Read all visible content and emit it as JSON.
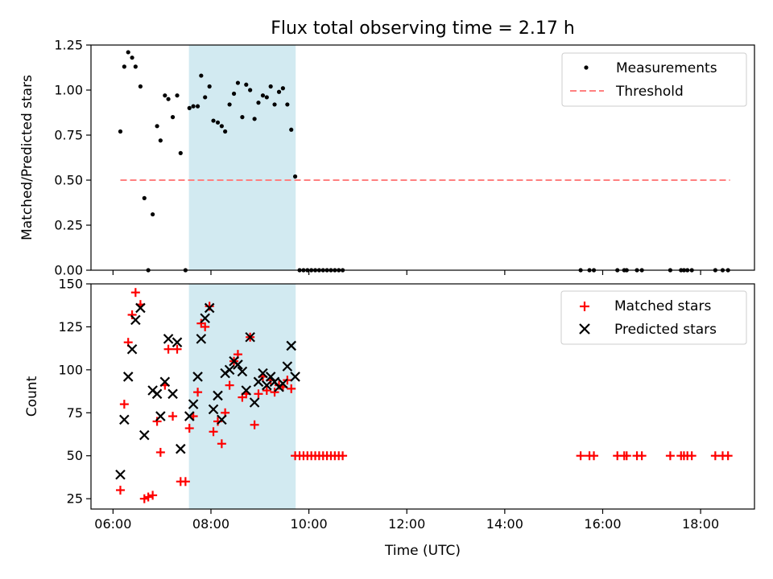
{
  "chart_data": [
    {
      "type": "scatter",
      "title": "Flux total observing time = 2.17 h",
      "ylabel": "Matched/Predicted stars",
      "ylim": [
        0,
        1.25
      ],
      "yticks": [
        "0.00",
        "0.25",
        "0.50",
        "0.75",
        "1.00",
        "1.25"
      ],
      "xlim_hours": [
        5.55,
        19.1
      ],
      "highlight_span": [
        7.55,
        9.73
      ],
      "highlight_color": "#add8e6",
      "legend": {
        "location": "top-right",
        "measurements": "Measurements",
        "threshold": "Threshold"
      },
      "threshold": {
        "value": 0.5,
        "x": [
          6.15,
          18.6
        ],
        "color": "#ff8080"
      },
      "series": [
        {
          "name": "Measurements",
          "color": "#000000",
          "points": [
            [
              6.15,
              0.77
            ],
            [
              6.23,
              1.13
            ],
            [
              6.31,
              1.21
            ],
            [
              6.39,
              1.18
            ],
            [
              6.46,
              1.13
            ],
            [
              6.56,
              1.02
            ],
            [
              6.64,
              0.4
            ],
            [
              6.72,
              0.0
            ],
            [
              6.81,
              0.31
            ],
            [
              6.9,
              0.8
            ],
            [
              6.97,
              0.72
            ],
            [
              7.06,
              0.97
            ],
            [
              7.13,
              0.95
            ],
            [
              7.22,
              0.85
            ],
            [
              7.31,
              0.97
            ],
            [
              7.38,
              0.65
            ],
            [
              7.48,
              0.0
            ],
            [
              7.56,
              0.9
            ],
            [
              7.64,
              0.91
            ],
            [
              7.73,
              0.91
            ],
            [
              7.8,
              1.08
            ],
            [
              7.88,
              0.96
            ],
            [
              7.97,
              1.02
            ],
            [
              8.05,
              0.83
            ],
            [
              8.14,
              0.82
            ],
            [
              8.22,
              0.8
            ],
            [
              8.29,
              0.77
            ],
            [
              8.38,
              0.92
            ],
            [
              8.47,
              0.98
            ],
            [
              8.55,
              1.04
            ],
            [
              8.64,
              0.85
            ],
            [
              8.72,
              1.03
            ],
            [
              8.8,
              1.0
            ],
            [
              8.89,
              0.84
            ],
            [
              8.97,
              0.93
            ],
            [
              9.06,
              0.97
            ],
            [
              9.14,
              0.96
            ],
            [
              9.22,
              1.02
            ],
            [
              9.3,
              0.92
            ],
            [
              9.39,
              0.99
            ],
            [
              9.47,
              1.01
            ],
            [
              9.56,
              0.92
            ],
            [
              9.64,
              0.78
            ],
            [
              9.72,
              0.52
            ],
            [
              9.81,
              0.0
            ],
            [
              9.89,
              0.0
            ],
            [
              9.97,
              0.0
            ],
            [
              10.05,
              0.0
            ],
            [
              10.13,
              0.0
            ],
            [
              10.21,
              0.0
            ],
            [
              10.29,
              0.0
            ],
            [
              10.37,
              0.0
            ],
            [
              10.45,
              0.0
            ],
            [
              10.53,
              0.0
            ],
            [
              10.61,
              0.0
            ],
            [
              10.69,
              0.0
            ],
            [
              15.55,
              0.0
            ],
            [
              15.73,
              0.0
            ],
            [
              15.82,
              0.0
            ],
            [
              16.3,
              0.0
            ],
            [
              16.44,
              0.0
            ],
            [
              16.49,
              0.0
            ],
            [
              16.7,
              0.0
            ],
            [
              16.8,
              0.0
            ],
            [
              17.38,
              0.0
            ],
            [
              17.6,
              0.0
            ],
            [
              17.66,
              0.0
            ],
            [
              17.73,
              0.0
            ],
            [
              17.82,
              0.0
            ],
            [
              18.3,
              0.0
            ],
            [
              18.45,
              0.0
            ],
            [
              18.56,
              0.0
            ]
          ]
        }
      ]
    },
    {
      "type": "scatter",
      "xlabel": "Time (UTC)",
      "ylabel": "Count",
      "ylim": [
        19,
        150
      ],
      "yticks": [
        "25",
        "50",
        "75",
        "100",
        "125",
        "150"
      ],
      "xlim_hours": [
        5.55,
        19.1
      ],
      "xticks": [
        "06:00",
        "08:00",
        "10:00",
        "12:00",
        "14:00",
        "16:00",
        "18:00"
      ],
      "highlight_span": [
        7.55,
        9.73
      ],
      "highlight_color": "#add8e6",
      "legend": {
        "location": "top-right",
        "matched": "Matched stars",
        "predicted": "Predicted stars"
      },
      "series": [
        {
          "name": "Matched stars",
          "marker": "+",
          "color": "#ff0000",
          "points": [
            [
              6.15,
              30
            ],
            [
              6.23,
              80
            ],
            [
              6.31,
              116
            ],
            [
              6.39,
              132
            ],
            [
              6.46,
              145
            ],
            [
              6.56,
              138
            ],
            [
              6.64,
              25
            ],
            [
              6.72,
              26
            ],
            [
              6.81,
              27
            ],
            [
              6.9,
              70
            ],
            [
              6.97,
              52
            ],
            [
              7.06,
              91
            ],
            [
              7.13,
              112
            ],
            [
              7.22,
              73
            ],
            [
              7.31,
              112
            ],
            [
              7.38,
              35
            ],
            [
              7.48,
              35
            ],
            [
              7.56,
              66
            ],
            [
              7.64,
              73
            ],
            [
              7.73,
              87
            ],
            [
              7.8,
              127
            ],
            [
              7.88,
              125
            ],
            [
              7.97,
              137
            ],
            [
              8.05,
              64
            ],
            [
              8.14,
              70
            ],
            [
              8.22,
              57
            ],
            [
              8.29,
              75
            ],
            [
              8.38,
              91
            ],
            [
              8.47,
              105
            ],
            [
              8.55,
              109
            ],
            [
              8.64,
              84
            ],
            [
              8.72,
              86
            ],
            [
              8.8,
              119
            ],
            [
              8.89,
              68
            ],
            [
              8.97,
              86
            ],
            [
              9.06,
              96
            ],
            [
              9.14,
              88
            ],
            [
              9.22,
              94
            ],
            [
              9.3,
              87
            ],
            [
              9.39,
              91
            ],
            [
              9.47,
              90
            ],
            [
              9.56,
              94
            ],
            [
              9.64,
              89
            ],
            [
              9.72,
              50
            ],
            [
              9.81,
              50
            ],
            [
              9.89,
              50
            ],
            [
              9.97,
              50
            ],
            [
              10.05,
              50
            ],
            [
              10.13,
              50
            ],
            [
              10.21,
              50
            ],
            [
              10.29,
              50
            ],
            [
              10.37,
              50
            ],
            [
              10.45,
              50
            ],
            [
              10.53,
              50
            ],
            [
              10.61,
              50
            ],
            [
              10.69,
              50
            ],
            [
              15.55,
              50
            ],
            [
              15.73,
              50
            ],
            [
              15.82,
              50
            ],
            [
              16.3,
              50
            ],
            [
              16.44,
              50
            ],
            [
              16.49,
              50
            ],
            [
              16.7,
              50
            ],
            [
              16.8,
              50
            ],
            [
              17.38,
              50
            ],
            [
              17.6,
              50
            ],
            [
              17.66,
              50
            ],
            [
              17.73,
              50
            ],
            [
              17.82,
              50
            ],
            [
              18.3,
              50
            ],
            [
              18.45,
              50
            ],
            [
              18.56,
              50
            ]
          ]
        },
        {
          "name": "Predicted stars",
          "marker": "x",
          "color": "#000000",
          "points": [
            [
              6.15,
              39
            ],
            [
              6.23,
              71
            ],
            [
              6.31,
              96
            ],
            [
              6.39,
              112
            ],
            [
              6.46,
              129
            ],
            [
              6.56,
              136
            ],
            [
              6.64,
              62
            ],
            [
              6.81,
              88
            ],
            [
              6.9,
              86
            ],
            [
              6.97,
              73
            ],
            [
              7.06,
              93
            ],
            [
              7.13,
              118
            ],
            [
              7.22,
              86
            ],
            [
              7.31,
              116
            ],
            [
              7.38,
              54
            ],
            [
              7.56,
              73
            ],
            [
              7.64,
              80
            ],
            [
              7.73,
              96
            ],
            [
              7.8,
              118
            ],
            [
              7.88,
              130
            ],
            [
              7.97,
              136
            ],
            [
              8.05,
              77
            ],
            [
              8.14,
              85
            ],
            [
              8.22,
              71
            ],
            [
              8.29,
              98
            ],
            [
              8.38,
              100
            ],
            [
              8.47,
              105
            ],
            [
              8.55,
              103
            ],
            [
              8.64,
              99
            ],
            [
              8.72,
              88
            ],
            [
              8.8,
              119
            ],
            [
              8.89,
              81
            ],
            [
              8.97,
              93
            ],
            [
              9.06,
              98
            ],
            [
              9.14,
              91
            ],
            [
              9.22,
              96
            ],
            [
              9.3,
              93
            ],
            [
              9.39,
              90
            ],
            [
              9.47,
              92
            ],
            [
              9.56,
              102
            ],
            [
              9.64,
              114
            ],
            [
              9.72,
              96
            ]
          ]
        }
      ]
    }
  ]
}
